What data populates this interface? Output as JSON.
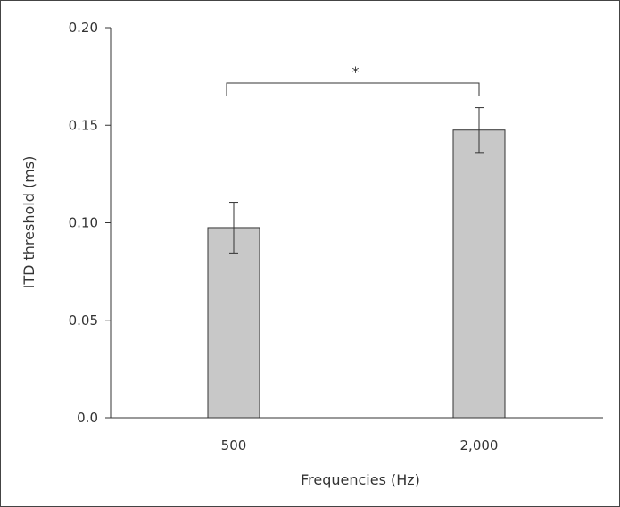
{
  "chart_data": {
    "type": "bar",
    "xlabel": "Frequencies (Hz)",
    "ylabel": "ITD threshold (ms)",
    "categories": [
      "500",
      "2,000"
    ],
    "values": [
      0.0975,
      0.1475
    ],
    "error": [
      0.013,
      0.0115
    ],
    "ylim": [
      0,
      0.2
    ],
    "yticks": [
      "0.0",
      "0.05",
      "0.10",
      "0.15",
      "0.20"
    ],
    "ytick_values": [
      0,
      0.05,
      0.1,
      0.15,
      0.2
    ],
    "bar_color": "#c8c8c8",
    "significance": {
      "between": [
        0,
        1
      ],
      "label": "*"
    },
    "grid": false
  }
}
